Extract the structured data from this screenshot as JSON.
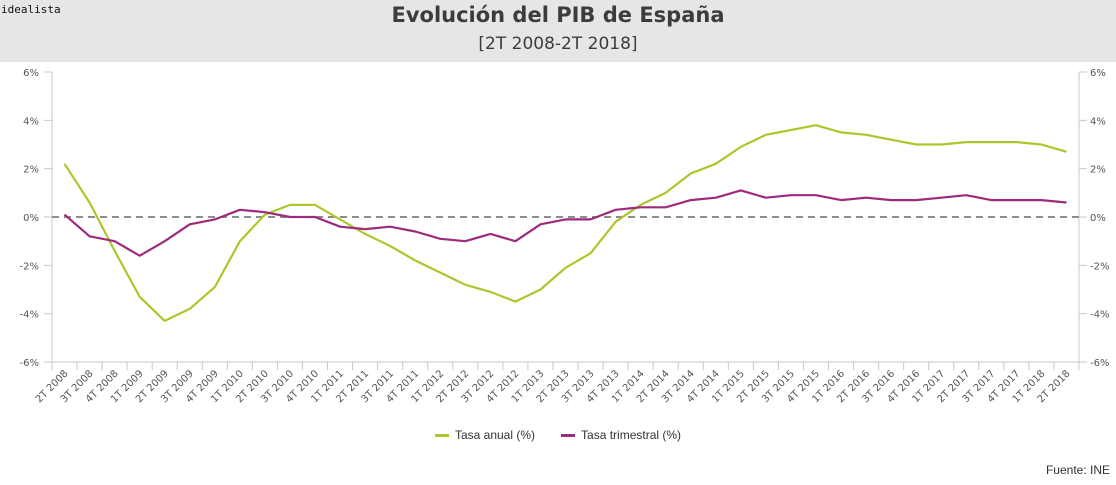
{
  "brand": "idealista",
  "chart_data": {
    "type": "line",
    "title": "Evolución del PIB de España",
    "subtitle": "[2T 2008-2T 2018]",
    "xlabel": "",
    "ylabel": "",
    "ylim": [
      -6,
      6
    ],
    "yticks": [
      6,
      4,
      2,
      0,
      -2,
      -4,
      -6
    ],
    "ytick_labels": [
      "6%",
      "4%",
      "2%",
      "0%",
      "-2%",
      "-4%",
      "-6%"
    ],
    "y_axes": [
      "left",
      "right"
    ],
    "zero_line": "dashed",
    "grid": false,
    "legend_position": "bottom",
    "categories": [
      "2T 2008",
      "3T 2008",
      "4T 2008",
      "1T 2009",
      "2T 2009",
      "3T 2009",
      "4T 2009",
      "1T 2010",
      "2T 2010",
      "3T 2010",
      "4T 2010",
      "1T 2011",
      "2T 2011",
      "3T 2011",
      "4T 2011",
      "1T 2012",
      "2T 2012",
      "3T 2012",
      "4T 2012",
      "1T 2013",
      "2T 2013",
      "3T 2013",
      "4T 2013",
      "1T 2014",
      "2T 2014",
      "3T 2014",
      "4T 2014",
      "1T 2015",
      "2T 2015",
      "3T 2015",
      "4T 2015",
      "1T 2016",
      "2T 2016",
      "3T 2016",
      "4T 2016",
      "1T 2017",
      "2T 2017",
      "3T 2017",
      "4T 2017",
      "1T 2018",
      "2T 2018"
    ],
    "series": [
      {
        "name": "Tasa anual (%)",
        "color": "#a9c92b",
        "values": [
          2.2,
          0.6,
          -1.4,
          -3.3,
          -4.3,
          -3.8,
          -2.9,
          -1.0,
          0.1,
          0.5,
          0.5,
          -0.1,
          -0.7,
          -1.2,
          -1.8,
          -2.3,
          -2.8,
          -3.1,
          -3.5,
          -3.0,
          -2.1,
          -1.5,
          -0.2,
          0.5,
          1.0,
          1.8,
          2.2,
          2.9,
          3.4,
          3.6,
          3.8,
          3.5,
          3.4,
          3.2,
          3.0,
          3.0,
          3.1,
          3.1,
          3.1,
          3.0,
          2.7
        ]
      },
      {
        "name": "Tasa trimestral (%)",
        "color": "#9e2a7e",
        "values": [
          0.1,
          -0.8,
          -1.0,
          -1.6,
          -1.0,
          -0.3,
          -0.1,
          0.3,
          0.2,
          0.0,
          0.0,
          -0.4,
          -0.5,
          -0.4,
          -0.6,
          -0.9,
          -1.0,
          -0.7,
          -1.0,
          -0.3,
          -0.1,
          -0.1,
          0.3,
          0.4,
          0.4,
          0.7,
          0.8,
          1.1,
          0.8,
          0.9,
          0.9,
          0.7,
          0.8,
          0.7,
          0.7,
          0.8,
          0.9,
          0.7,
          0.7,
          0.7,
          0.6
        ]
      }
    ],
    "source": "Fuente: INE"
  }
}
